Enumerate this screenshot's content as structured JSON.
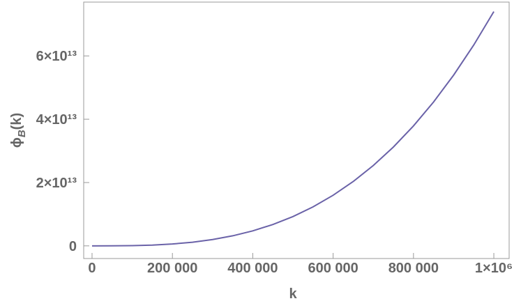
{
  "chart_data": {
    "type": "line",
    "xlabel": "k",
    "ylabel": {
      "symbol": "ϕ",
      "subscript": "B",
      "argument": "(k)"
    },
    "x": [
      0,
      50000,
      100000,
      150000,
      200000,
      250000,
      300000,
      350000,
      400000,
      450000,
      500000,
      550000,
      600000,
      650000,
      700000,
      750000,
      800000,
      850000,
      900000,
      950000,
      1000000
    ],
    "series": [
      {
        "color": "#6a62a8",
        "values": [
          0,
          9250000000.0,
          74000000000.0,
          249750000000.0,
          592000000000.0,
          1156250000000.0,
          1998000000000.0,
          3172750000000.0,
          4736000000000.0,
          6743250000000.0,
          9250000000000.0,
          12311750000000.0,
          15984000000000.0,
          20322250000000.0,
          25382000000000.0,
          31218750000000.0,
          37888000000000.0,
          45445250000000.0,
          53946000000000.0,
          63445750000000.0,
          74000000000000.0
        ]
      }
    ],
    "xlim": [
      -20800,
      1038100
    ],
    "ylim": [
      -4000000000000.0,
      77000000000000.0
    ],
    "xticks": [
      0,
      {
        "value": 200000,
        "label": "200 000"
      },
      {
        "value": 400000,
        "label": "400 000"
      },
      {
        "value": 600000,
        "label": "600 000"
      },
      {
        "value": 800000,
        "label": "800 000"
      },
      {
        "value": 1000000,
        "label": "1×10⁶"
      }
    ],
    "yticks": [
      0,
      {
        "value": 20000000000000.0,
        "label": "2×10¹³"
      },
      {
        "value": 40000000000000.0,
        "label": "4×10¹³"
      },
      {
        "value": 60000000000000.0,
        "label": "6×10¹³"
      }
    ]
  }
}
